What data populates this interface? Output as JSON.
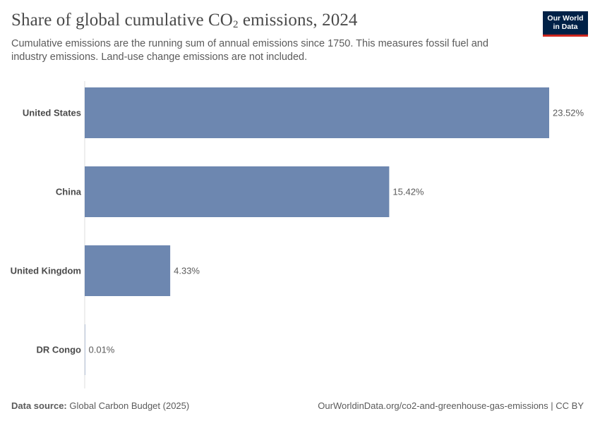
{
  "header": {
    "title_main": "Share of global cumulative CO",
    "title_sub": "2",
    "title_end": " emissions, 2024",
    "subtitle": "Cumulative emissions are the running sum of annual emissions since 1750. This measures fossil fuel and industry emissions. Land-use change emissions are not included."
  },
  "logo": {
    "line1": "Our World",
    "line2": "in Data"
  },
  "footer": {
    "source_label": "Data source:",
    "source_value": "Global Carbon Budget (2025)",
    "url_license": "OurWorldinData.org/co2-and-greenhouse-gas-emissions | CC BY"
  },
  "colors": {
    "bar": "#6d87b0",
    "axis": "#dcdcdc"
  },
  "chart_data": {
    "type": "bar",
    "orientation": "horizontal",
    "title": "Share of global cumulative CO2 emissions, 2024",
    "xlabel": "",
    "ylabel": "",
    "unit": "%",
    "xlim": [
      0,
      23.52
    ],
    "categories": [
      "United States",
      "China",
      "United Kingdom",
      "DR Congo"
    ],
    "values": [
      23.52,
      15.42,
      4.33,
      0.01
    ],
    "value_labels": [
      "23.52%",
      "15.42%",
      "4.33%",
      "0.01%"
    ],
    "grid": false,
    "legend": "none"
  }
}
